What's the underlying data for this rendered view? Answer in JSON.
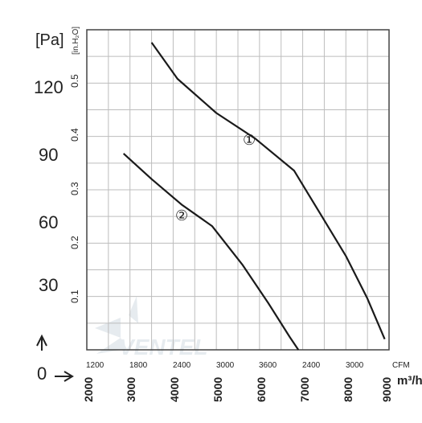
{
  "chart_data": {
    "type": "line",
    "title": "",
    "y_axis_left": {
      "unit_label": "[Pa]",
      "ticks": [
        "30",
        "60",
        "90",
        "120"
      ],
      "zero_label": "0",
      "range": [
        0,
        150
      ]
    },
    "y_axis_secondary": {
      "unit_label": "[in.H₂O]",
      "ticks": [
        "0.1",
        "0.2",
        "0.3",
        "0.4",
        "0.5"
      ]
    },
    "x_axis_cfm": {
      "unit_label": "CFM",
      "ticks": [
        "1200",
        "1800",
        "2400",
        "3000",
        "3600",
        "2400",
        "3000"
      ]
    },
    "x_axis_m3h": {
      "unit_label": "m³/h",
      "ticks": [
        "2000",
        "3000",
        "4000",
        "5000",
        "6000",
        "7000",
        "8000",
        "9000"
      ],
      "range": [
        2000,
        9000
      ]
    },
    "grid": true,
    "series": [
      {
        "name": "①",
        "points": [
          [
            3500,
            144
          ],
          [
            4100,
            127
          ],
          [
            5000,
            111
          ],
          [
            5900,
            99
          ],
          [
            6800,
            84
          ],
          [
            7400,
            64
          ],
          [
            8000,
            44
          ],
          [
            8500,
            24
          ],
          [
            8900,
            5
          ]
        ]
      },
      {
        "name": "②",
        "points": [
          [
            2850,
            92
          ],
          [
            3500,
            80
          ],
          [
            4200,
            68
          ],
          [
            4900,
            58
          ],
          [
            5600,
            40
          ],
          [
            6200,
            22
          ],
          [
            6700,
            6
          ],
          [
            6900,
            0
          ]
        ]
      }
    ],
    "watermark": "VENTEL"
  }
}
